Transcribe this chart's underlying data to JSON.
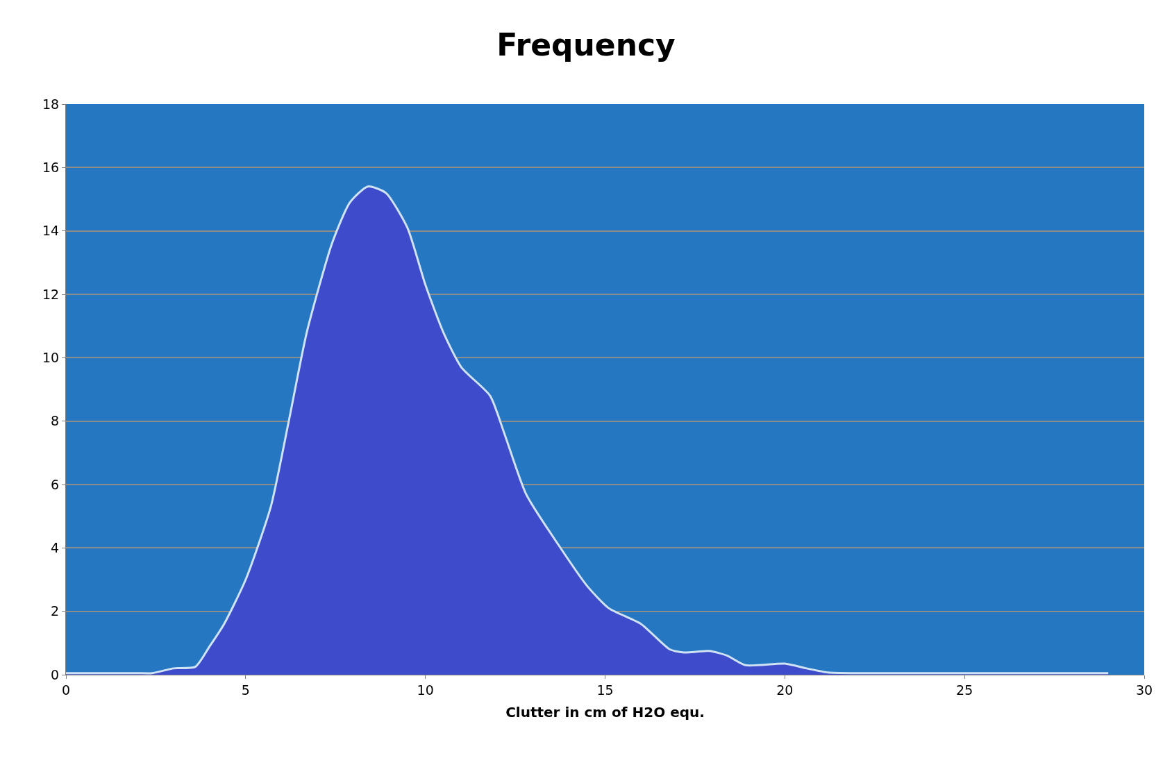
{
  "chart_data": {
    "type": "area",
    "title": "Frequency",
    "xlabel": "Clutter in cm of H2O equ.",
    "xlim": [
      0,
      30
    ],
    "xticks": [
      0,
      5,
      10,
      15,
      20,
      25,
      30
    ],
    "ylim": [
      0,
      18
    ],
    "yticks": [
      0,
      2,
      4,
      6,
      8,
      10,
      12,
      14,
      16,
      18
    ],
    "grid": "y",
    "series": [
      {
        "color": "#3e4bcb",
        "x": [
          0,
          1,
          2,
          2.4,
          3,
          3.6,
          4,
          4.4,
          5,
          5.7,
          6.2,
          6.7,
          7.4,
          7.9,
          8.4,
          8.9,
          9.5,
          10,
          10.5,
          11,
          11.8,
          12.2,
          12.8,
          13.7,
          14.5,
          15.1,
          16,
          16.8,
          17.2,
          17.9,
          18.4,
          18.9,
          20,
          20.6,
          21.2,
          22,
          25,
          29
        ],
        "values": [
          0.05,
          0.05,
          0.05,
          0.05,
          0.2,
          0.25,
          0.9,
          1.6,
          3,
          5.3,
          8,
          10.8,
          13.6,
          14.9,
          15.4,
          15.2,
          14.1,
          12.3,
          10.8,
          9.7,
          8.8,
          7.6,
          5.7,
          4.1,
          2.8,
          2.1,
          1.6,
          0.8,
          0.7,
          0.75,
          0.6,
          0.3,
          0.35,
          0.2,
          0.07,
          0.05,
          0.05,
          0.05
        ]
      }
    ]
  }
}
